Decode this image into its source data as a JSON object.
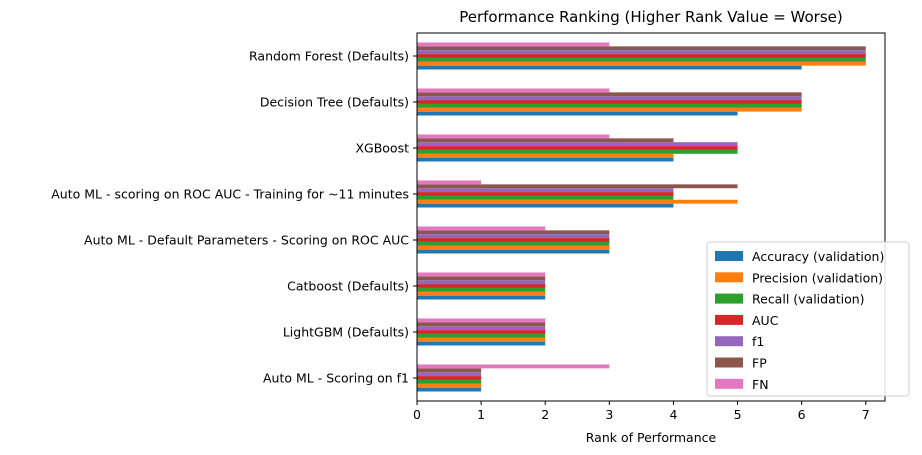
{
  "chart_data": {
    "type": "bar",
    "orientation": "horizontal",
    "title": "Performance Ranking (Higher Rank Value = Worse)",
    "xlabel": "Rank of Performance",
    "ylabel": "",
    "xlim": [
      0,
      7.3
    ],
    "xticks": [
      0,
      1,
      2,
      3,
      4,
      5,
      6,
      7
    ],
    "grid": false,
    "legend_position": "lower-right",
    "categories": [
      "Auto ML - Scoring on f1",
      "LightGBM (Defaults)",
      "Catboost (Defaults)",
      "Auto ML - Default Parameters - Scoring on ROC AUC",
      "Auto ML - scoring on ROC AUC - Training for ~11 minutes",
      "XGBoost",
      "Decision Tree (Defaults)",
      "Random Forest (Defaults)"
    ],
    "series": [
      {
        "name": "Accuracy (validation)",
        "color": "#1f77b4",
        "values": [
          1,
          2,
          2,
          3,
          4,
          4,
          5,
          6
        ]
      },
      {
        "name": "Precision (validation)",
        "color": "#ff7f0e",
        "values": [
          1,
          2,
          2,
          3,
          5,
          4,
          6,
          7
        ]
      },
      {
        "name": "Recall (validation)",
        "color": "#2ca02c",
        "values": [
          1,
          2,
          2,
          3,
          4,
          5,
          6,
          7
        ]
      },
      {
        "name": "AUC",
        "color": "#d62728",
        "values": [
          1,
          2,
          2,
          3,
          4,
          5,
          6,
          7
        ]
      },
      {
        "name": "f1",
        "color": "#9467bd",
        "values": [
          1,
          2,
          2,
          3,
          4,
          5,
          6,
          7
        ]
      },
      {
        "name": "FP",
        "color": "#8c564b",
        "values": [
          1,
          2,
          2,
          3,
          5,
          4,
          6,
          7
        ]
      },
      {
        "name": "FN",
        "color": "#e377c2",
        "values": [
          3,
          2,
          2,
          2,
          1,
          3,
          3,
          3
        ]
      }
    ]
  }
}
